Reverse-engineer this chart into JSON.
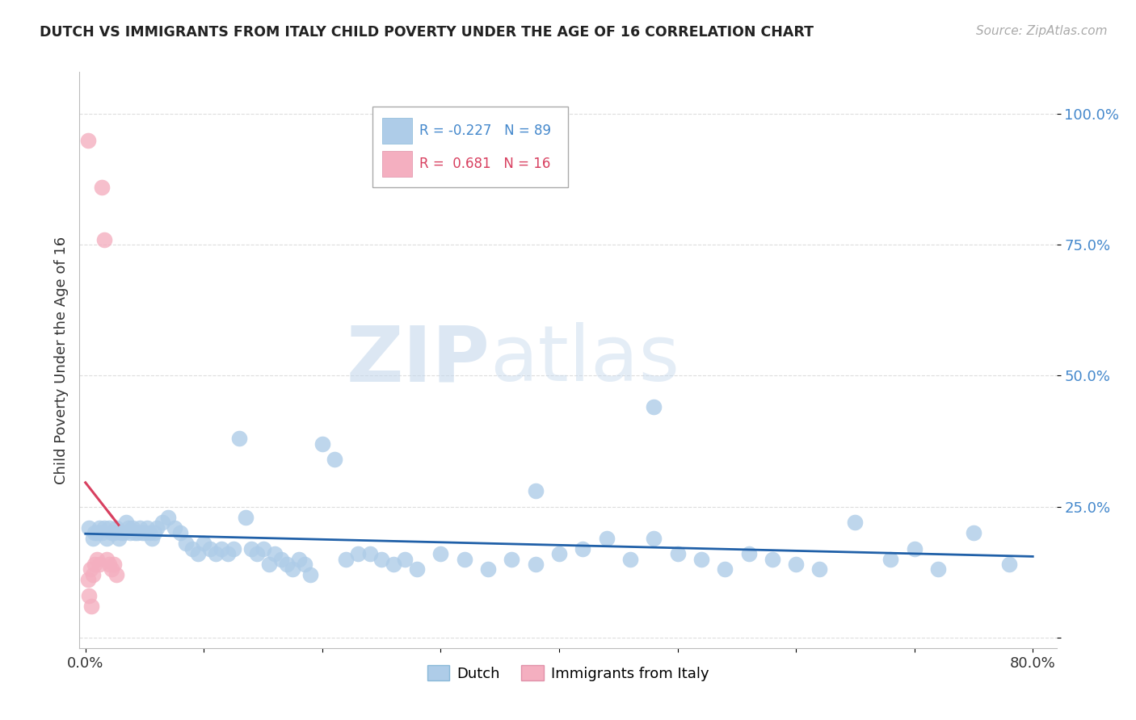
{
  "title": "DUTCH VS IMMIGRANTS FROM ITALY CHILD POVERTY UNDER THE AGE OF 16 CORRELATION CHART",
  "source": "Source: ZipAtlas.com",
  "ylabel": "Child Poverty Under the Age of 16",
  "xlabel": "",
  "xlim": [
    -0.005,
    0.82
  ],
  "ylim": [
    -0.02,
    1.08
  ],
  "dutch_R": -0.227,
  "dutch_N": 89,
  "italy_R": 0.681,
  "italy_N": 16,
  "dutch_color": "#aecce8",
  "italy_color": "#f4afc0",
  "dutch_line_color": "#2060a8",
  "italy_line_color": "#d84060",
  "dutch_scatter_x": [
    0.003,
    0.006,
    0.008,
    0.01,
    0.012,
    0.014,
    0.016,
    0.018,
    0.02,
    0.022,
    0.024,
    0.026,
    0.028,
    0.03,
    0.032,
    0.034,
    0.036,
    0.038,
    0.04,
    0.042,
    0.044,
    0.046,
    0.048,
    0.05,
    0.052,
    0.054,
    0.056,
    0.058,
    0.06,
    0.065,
    0.07,
    0.075,
    0.08,
    0.085,
    0.09,
    0.095,
    0.1,
    0.105,
    0.11,
    0.115,
    0.12,
    0.125,
    0.13,
    0.135,
    0.14,
    0.145,
    0.15,
    0.155,
    0.16,
    0.165,
    0.17,
    0.175,
    0.18,
    0.185,
    0.19,
    0.2,
    0.21,
    0.22,
    0.23,
    0.24,
    0.25,
    0.26,
    0.27,
    0.28,
    0.3,
    0.32,
    0.34,
    0.36,
    0.38,
    0.4,
    0.42,
    0.44,
    0.46,
    0.48,
    0.5,
    0.52,
    0.54,
    0.56,
    0.58,
    0.6,
    0.62,
    0.65,
    0.68,
    0.7,
    0.72,
    0.75,
    0.78,
    0.38,
    0.48
  ],
  "dutch_scatter_y": [
    0.21,
    0.19,
    0.2,
    0.2,
    0.21,
    0.2,
    0.21,
    0.19,
    0.21,
    0.2,
    0.2,
    0.21,
    0.19,
    0.2,
    0.2,
    0.22,
    0.21,
    0.2,
    0.21,
    0.2,
    0.2,
    0.21,
    0.2,
    0.2,
    0.21,
    0.2,
    0.19,
    0.2,
    0.21,
    0.22,
    0.23,
    0.21,
    0.2,
    0.18,
    0.17,
    0.16,
    0.18,
    0.17,
    0.16,
    0.17,
    0.16,
    0.17,
    0.38,
    0.23,
    0.17,
    0.16,
    0.17,
    0.14,
    0.16,
    0.15,
    0.14,
    0.13,
    0.15,
    0.14,
    0.12,
    0.37,
    0.34,
    0.15,
    0.16,
    0.16,
    0.15,
    0.14,
    0.15,
    0.13,
    0.16,
    0.15,
    0.13,
    0.15,
    0.14,
    0.16,
    0.17,
    0.19,
    0.15,
    0.19,
    0.16,
    0.15,
    0.13,
    0.16,
    0.15,
    0.14,
    0.13,
    0.22,
    0.15,
    0.17,
    0.13,
    0.2,
    0.14,
    0.28,
    0.44
  ],
  "italy_scatter_x": [
    0.002,
    0.004,
    0.006,
    0.008,
    0.01,
    0.012,
    0.014,
    0.016,
    0.018,
    0.02,
    0.022,
    0.024,
    0.026,
    0.003,
    0.005,
    0.002
  ],
  "italy_scatter_y": [
    0.11,
    0.13,
    0.12,
    0.14,
    0.15,
    0.14,
    0.86,
    0.76,
    0.15,
    0.14,
    0.13,
    0.14,
    0.12,
    0.08,
    0.06,
    0.95
  ],
  "watermark_zip": "ZIP",
  "watermark_atlas": "atlas",
  "background_color": "#ffffff",
  "grid_color": "#dddddd",
  "ytick_positions": [
    0.0,
    0.25,
    0.5,
    0.75,
    1.0
  ],
  "ytick_labels": [
    "",
    "25.0%",
    "50.0%",
    "75.0%",
    "100.0%"
  ],
  "xtick_positions": [
    0.0,
    0.1,
    0.2,
    0.3,
    0.4,
    0.5,
    0.6,
    0.7,
    0.8
  ],
  "xtick_labels": [
    "0.0%",
    "",
    "",
    "",
    "",
    "",
    "",
    "",
    "80.0%"
  ]
}
